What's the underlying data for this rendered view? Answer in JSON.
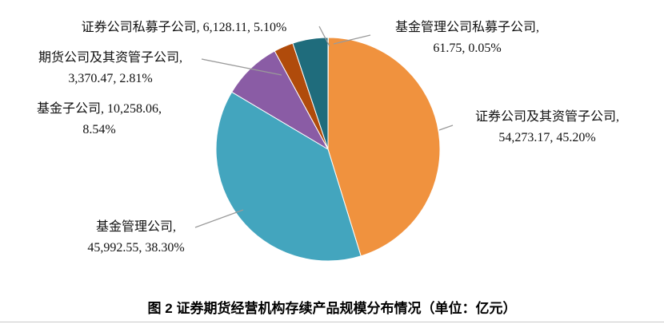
{
  "figure": {
    "caption": "图 2  证券期货经营机构存续产品规模分布情况（单位：亿元）"
  },
  "chart_data": {
    "type": "pie",
    "title": "证券期货经营机构存续产品规模分布情况",
    "unit": "亿元",
    "direction": "clockwise",
    "start_angle": "12-oclock",
    "slices": [
      {
        "name": "基金管理公司私募子公司",
        "value": 61.75,
        "percent": 0.05,
        "color": "#70ad47",
        "label": "基金管理公司私募子公司, 61.75, 0.05%"
      },
      {
        "name": "证券公司及其资管子公司",
        "value": 54273.17,
        "percent": 45.2,
        "color": "#f0923e",
        "label": "证券公司及其资管子公司, 54,273.17, 45.20%"
      },
      {
        "name": "基金管理公司",
        "value": 45992.55,
        "percent": 38.3,
        "color": "#43a5be",
        "label": "基金管理公司, 45,992.55, 38.30%"
      },
      {
        "name": "基金子公司",
        "value": 10258.06,
        "percent": 8.54,
        "color": "#8a5ca5",
        "label": "基金子公司, 10,258.06, 8.54%"
      },
      {
        "name": "期货公司及其资管子公司",
        "value": 3370.47,
        "percent": 2.81,
        "color": "#b04b0b",
        "label": "期货公司及其资管子公司, 3,370.47, 2.81%"
      },
      {
        "name": "证券公司私募子公司",
        "value": 6128.11,
        "percent": 5.1,
        "color": "#1f6c7c",
        "label": "证券公司私募子公司, 6,128.11, 5.10%"
      }
    ],
    "labels": {
      "sec_pe": {
        "line1": "证券公司私募子公司, 6,128.11, 5.10%",
        "line2": ""
      },
      "futures": {
        "line1": "期货公司及其资管子公司,",
        "line2": "3,370.47, 2.81%"
      },
      "fund_sub": {
        "line1": "基金子公司, 10,258.06,",
        "line2": "8.54%"
      },
      "fund_mgmt": {
        "line1": "基金管理公司,",
        "line2": "45,992.55, 38.30%"
      },
      "fund_pe": {
        "line1": "基金管理公司私募子公司,",
        "line2": "61.75, 0.05%"
      },
      "sec": {
        "line1": "证券公司及其资管子公司,",
        "line2": "54,273.17, 45.20%"
      }
    },
    "legend_position": "none",
    "grid": false,
    "leader_line_color": "#9a9a9a"
  }
}
